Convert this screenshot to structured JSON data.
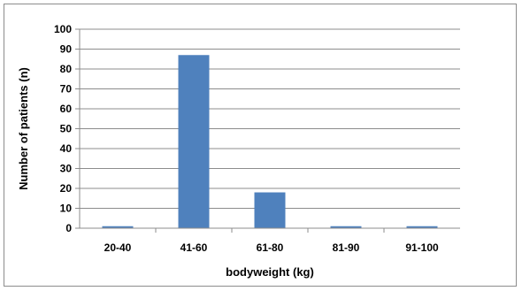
{
  "chart_data": {
    "type": "bar",
    "categories": [
      "20-40",
      "41-60",
      "61-80",
      "81-90",
      "91-100"
    ],
    "values": [
      1,
      87,
      18,
      1,
      1
    ],
    "xlabel": "bodyweight (kg)",
    "ylabel": "Number of patients (n)",
    "ylim": [
      0,
      100
    ],
    "yticks": [
      0,
      10,
      20,
      30,
      40,
      50,
      60,
      70,
      80,
      90,
      100
    ],
    "grid": true,
    "legend": "none",
    "bar_color": "#4f81bd",
    "grid_color": "#8c8c8c"
  }
}
